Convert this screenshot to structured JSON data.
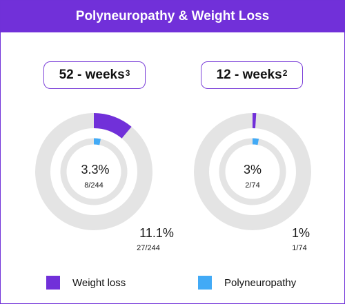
{
  "title": "Polyneuropathy & Weight Loss",
  "colors": {
    "weight_loss": "#7130d9",
    "polyneuropathy": "#42aaf6",
    "track": "#e4e4e4"
  },
  "legend": [
    {
      "label": "Weight loss",
      "color": "#7130d9"
    },
    {
      "label": "Polyneuropathy",
      "color": "#42aaf6"
    }
  ],
  "chart_data": [
    {
      "type": "donut",
      "title": "52 - weeks",
      "title_sup": "3",
      "outer": {
        "name": "Weight loss",
        "percent": 11.1,
        "label": "11.1%",
        "fraction": "27/244"
      },
      "inner": {
        "name": "Polyneuropathy",
        "percent": 3.3,
        "label": "3.3%",
        "fraction": "8/244"
      }
    },
    {
      "type": "donut",
      "title": "12 - weeks",
      "title_sup": "2",
      "outer": {
        "name": "Weight loss",
        "percent": 1,
        "label": "1%",
        "fraction": "1/74"
      },
      "inner": {
        "name": "Polyneuropathy",
        "percent": 3,
        "label": "3%",
        "fraction": "2/74"
      }
    }
  ]
}
